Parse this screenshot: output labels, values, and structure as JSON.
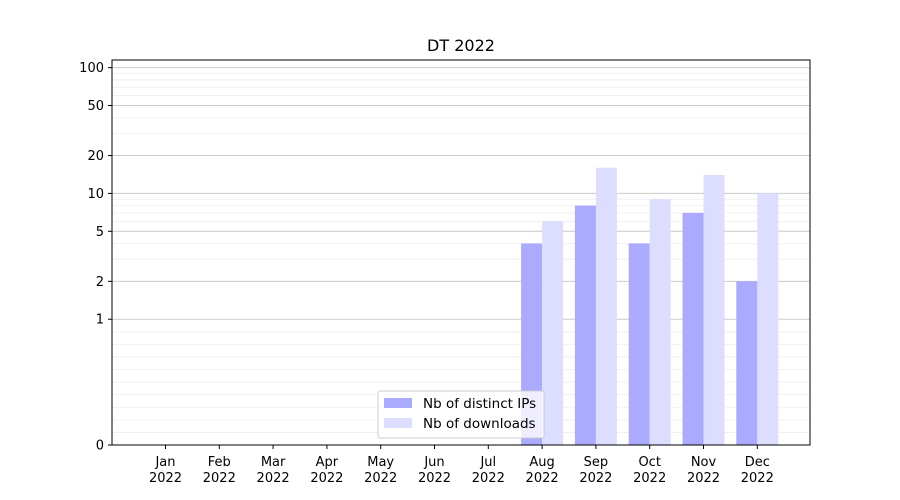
{
  "chart_data": {
    "type": "bar",
    "title": "DT 2022",
    "xlabel": "",
    "ylabel": "",
    "y_scale": "symlog",
    "yticks": [
      0,
      1,
      2,
      5,
      10,
      20,
      50,
      100
    ],
    "ytick_labels": [
      "0",
      "1",
      "2",
      "5",
      "10",
      "20",
      "50",
      "100"
    ],
    "categories": [
      {
        "month": "Jan",
        "year": "2022"
      },
      {
        "month": "Feb",
        "year": "2022"
      },
      {
        "month": "Mar",
        "year": "2022"
      },
      {
        "month": "Apr",
        "year": "2022"
      },
      {
        "month": "May",
        "year": "2022"
      },
      {
        "month": "Jun",
        "year": "2022"
      },
      {
        "month": "Jul",
        "year": "2022"
      },
      {
        "month": "Aug",
        "year": "2022"
      },
      {
        "month": "Sep",
        "year": "2022"
      },
      {
        "month": "Oct",
        "year": "2022"
      },
      {
        "month": "Nov",
        "year": "2022"
      },
      {
        "month": "Dec",
        "year": "2022"
      }
    ],
    "series": [
      {
        "name": "Nb of distinct IPs",
        "color": "#aaaaff",
        "values": [
          0,
          0,
          0,
          0,
          0,
          0,
          0,
          4,
          8,
          4,
          7,
          2
        ]
      },
      {
        "name": "Nb of downloads",
        "color": "#ddddff",
        "values": [
          0,
          0,
          0,
          0,
          0,
          0,
          0,
          6,
          16,
          9,
          14,
          10
        ]
      }
    ],
    "grid": true,
    "legend_position": "bottom-center"
  }
}
